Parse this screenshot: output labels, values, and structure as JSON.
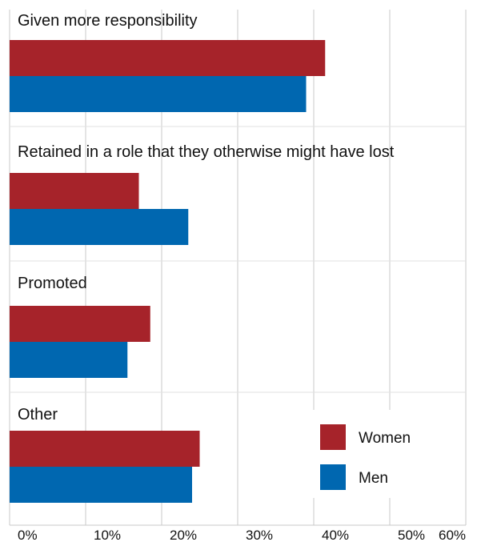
{
  "chart_data": {
    "type": "bar",
    "orientation": "horizontal",
    "categories": [
      "Given more responsibility",
      "Retained in a role that they otherwise might have lost",
      "Promoted",
      "Other"
    ],
    "series": [
      {
        "name": "Women",
        "color": "#a6232a",
        "values": [
          41.5,
          17,
          18.5,
          25
        ]
      },
      {
        "name": "Men",
        "color": "#0067b0",
        "values": [
          39,
          23.5,
          15.5,
          24
        ]
      }
    ],
    "xlim": [
      0,
      60
    ],
    "xticks": [
      "0%",
      "10%",
      "20%",
      "30%",
      "40%",
      "50%",
      "60%"
    ],
    "grid": true,
    "legend_position": "bottom-right"
  }
}
